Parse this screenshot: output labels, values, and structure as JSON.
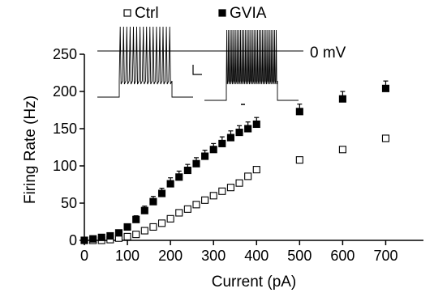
{
  "chart_data": {
    "type": "scatter",
    "xlabel": "Current (pA)",
    "ylabel": "Firing Rate (Hz)",
    "xlim": [
      0,
      750
    ],
    "ylim": [
      0,
      250
    ],
    "xticks": [
      0,
      100,
      200,
      300,
      400,
      500,
      600,
      700
    ],
    "yticks": [
      0,
      50,
      100,
      150,
      200,
      250
    ],
    "grid": false,
    "legend_position": "top",
    "annotation": "0 mV",
    "series": [
      {
        "name": "Ctrl",
        "marker": "open-square",
        "color": "#000000",
        "error_bars": true,
        "x": [
          0,
          20,
          40,
          60,
          80,
          100,
          120,
          140,
          160,
          180,
          200,
          220,
          240,
          260,
          280,
          300,
          320,
          340,
          360,
          380,
          400,
          500,
          600,
          700
        ],
        "y": [
          0,
          0,
          0,
          1,
          3,
          5,
          8,
          13,
          18,
          23,
          29,
          37,
          42,
          48,
          54,
          60,
          66,
          71,
          77,
          86,
          95,
          108,
          122,
          137
        ],
        "err": [
          0,
          0,
          0,
          0,
          0,
          0,
          0,
          0,
          0,
          0,
          0,
          0,
          0,
          0,
          0,
          0,
          0,
          0,
          0,
          0,
          0,
          0,
          0,
          0
        ]
      },
      {
        "name": "GVIA",
        "marker": "filled-square",
        "color": "#000000",
        "error_bars": true,
        "x": [
          0,
          20,
          40,
          60,
          80,
          100,
          120,
          140,
          160,
          180,
          200,
          220,
          240,
          260,
          280,
          300,
          320,
          340,
          360,
          380,
          400,
          500,
          600,
          700
        ],
        "y": [
          0,
          2,
          4,
          6,
          10,
          18,
          28,
          40,
          52,
          63,
          76,
          85,
          94,
          103,
          113,
          122,
          130,
          138,
          145,
          150,
          156,
          173,
          190,
          204
        ],
        "err": [
          0,
          0,
          0,
          1,
          2,
          3,
          5,
          6,
          7,
          7,
          8,
          8,
          8,
          8,
          8,
          8,
          9,
          9,
          9,
          9,
          9,
          10,
          10,
          10
        ]
      }
    ]
  }
}
